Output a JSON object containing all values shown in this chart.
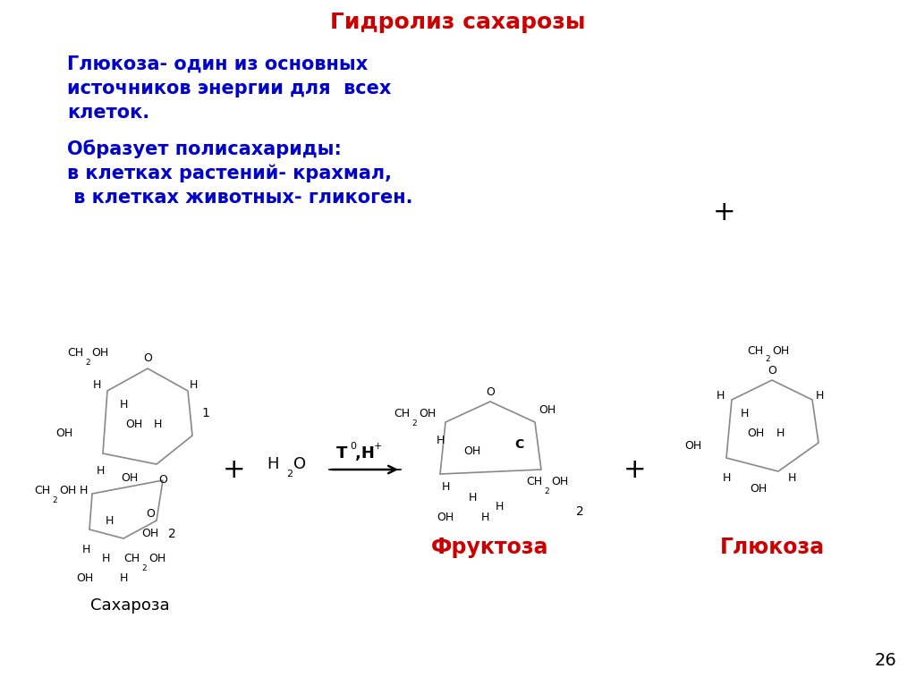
{
  "title": "Гидролиз сахарозы",
  "title_color": "#cc0000",
  "bg_color": "#ffffff",
  "blue_color": "#0000cc",
  "red_color": "#cc0000",
  "para1_line1": "Глюкоза- один из основных",
  "para1_line2": "источников энергии для  всех",
  "para1_line3": "клеток.",
  "para2_line1": "Образует полисахариды:",
  "para2_line2": "в клетках растений- крахмал,",
  "para2_line3": " в клетках животных- гликоген.",
  "label_saharoza": "Сахароза",
  "label_fruktoza": "Фруктоза",
  "label_glyukoza": "Глюкоза",
  "page_num": "26"
}
